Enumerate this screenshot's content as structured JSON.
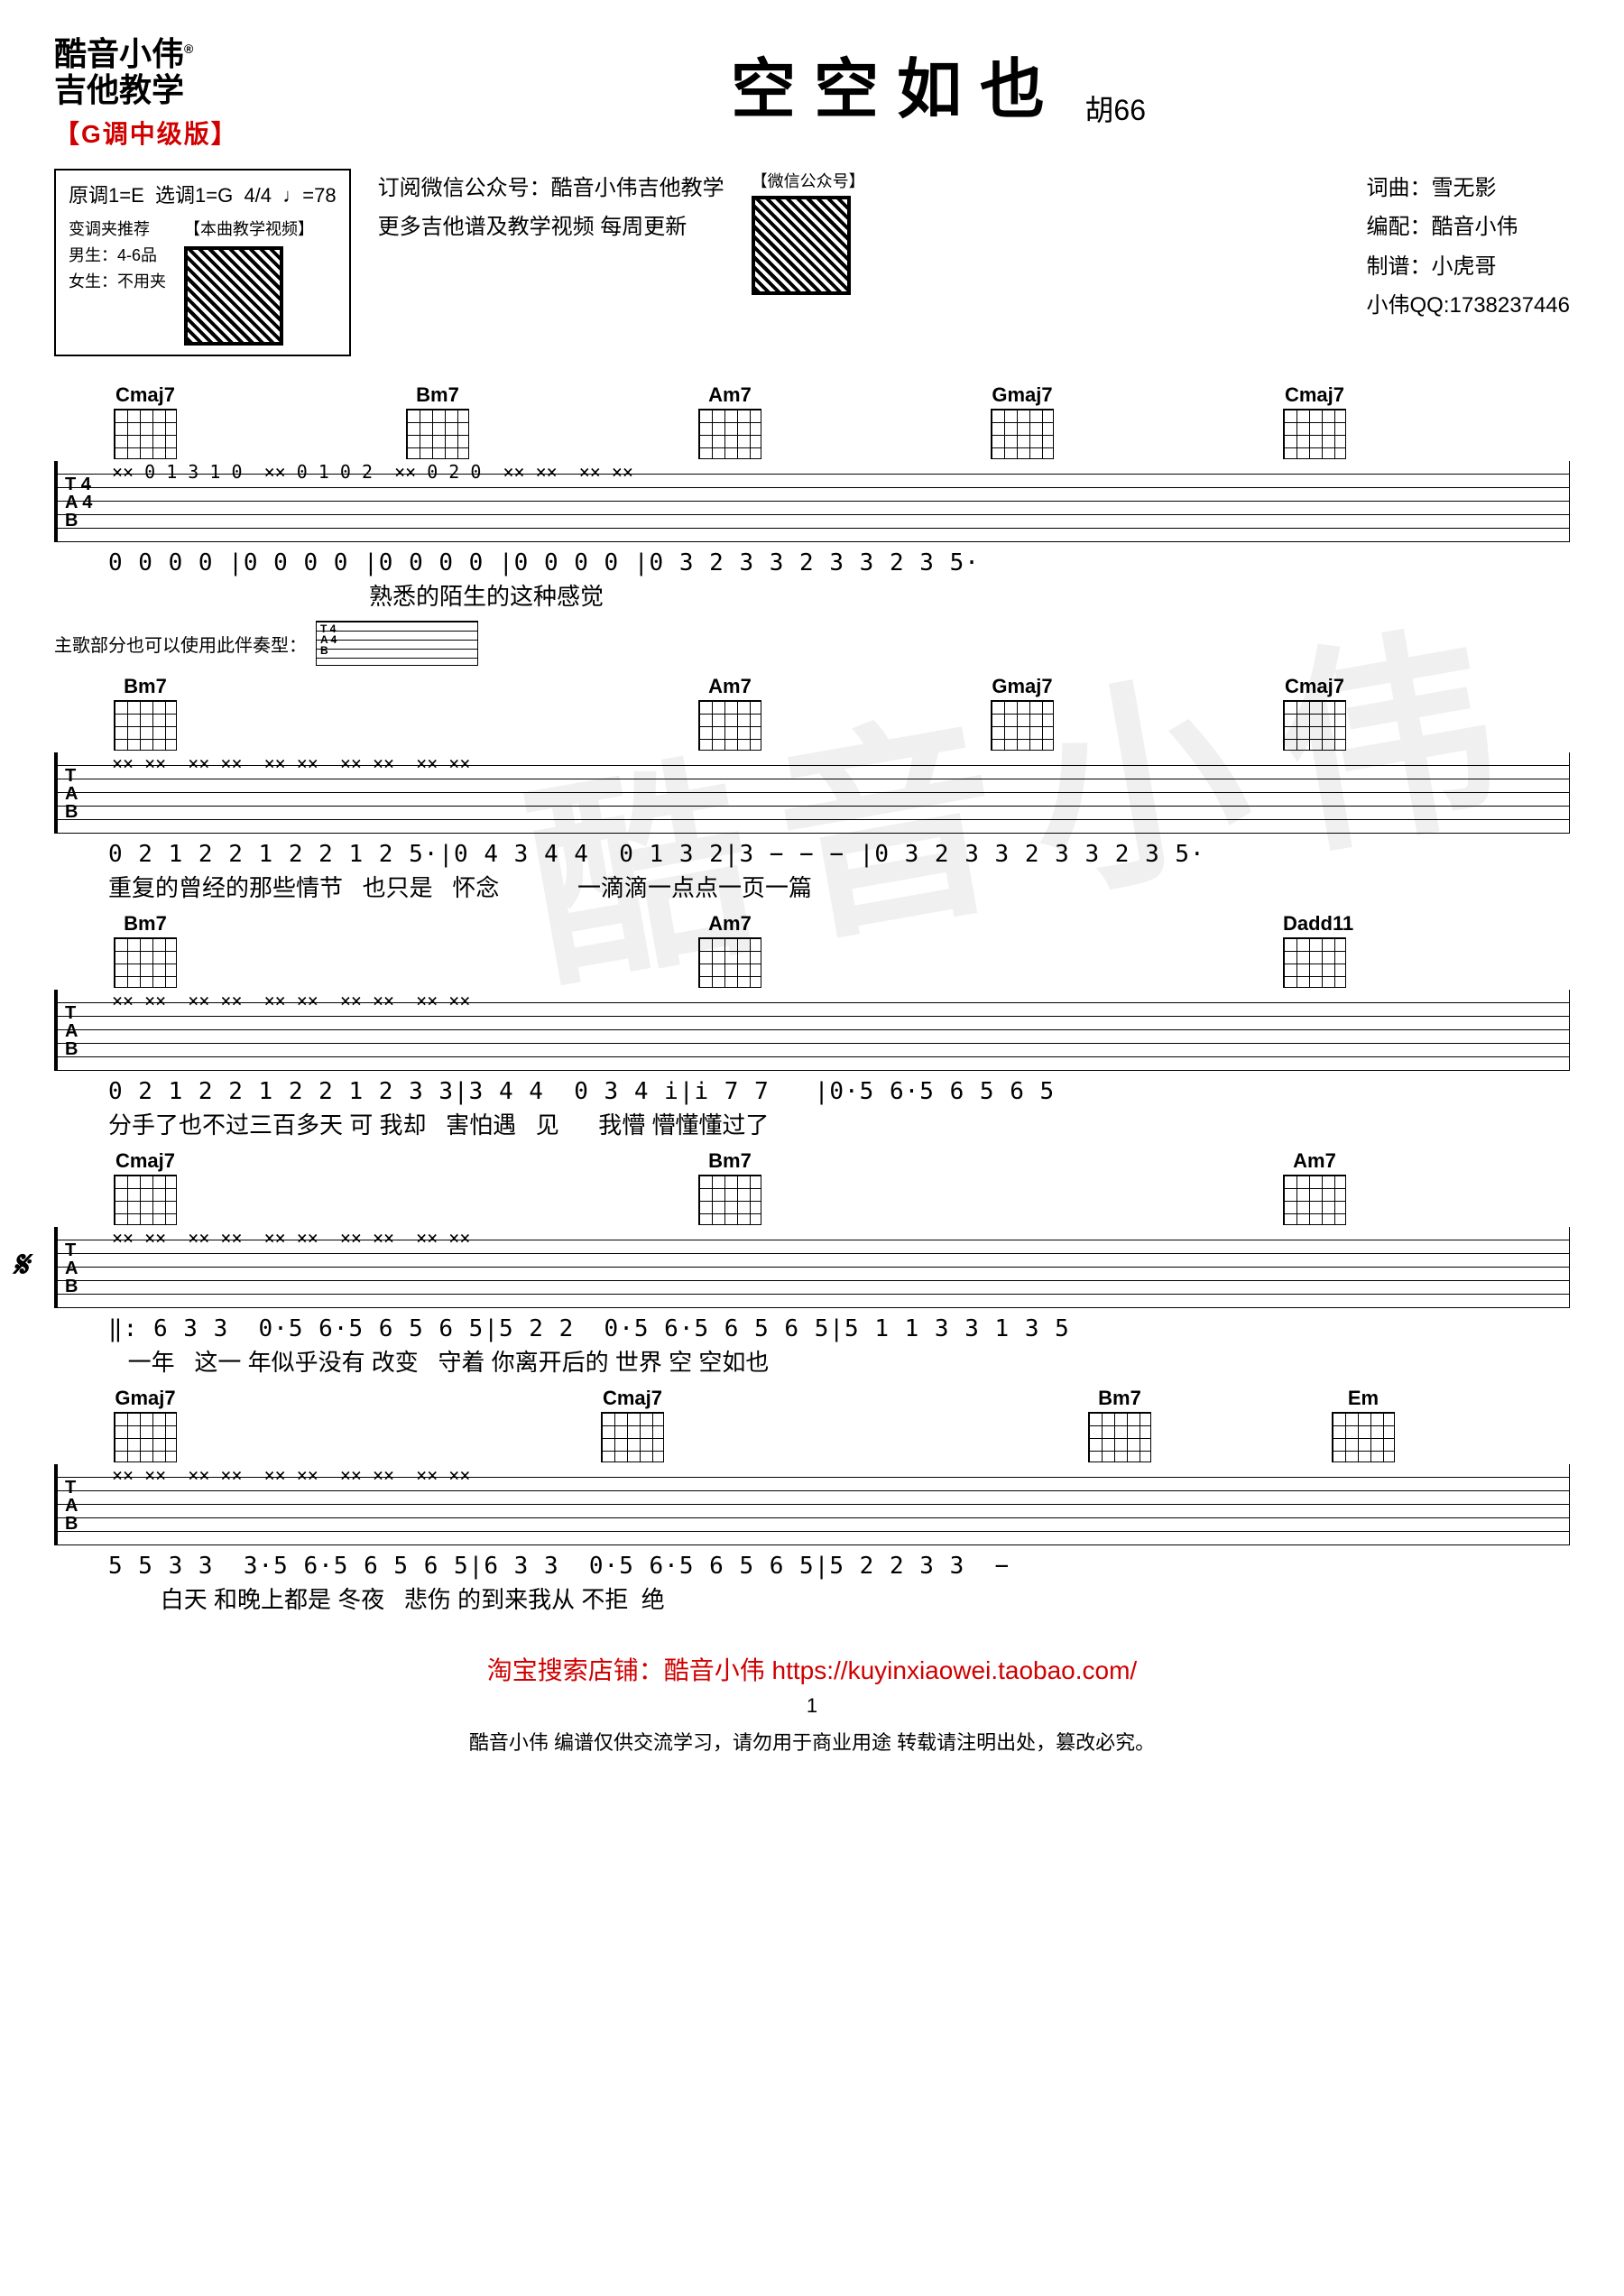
{
  "header": {
    "brand_line1": "酷音小伟",
    "brand_line2": "吉他教学",
    "reg_mark": "®",
    "version": "【G调中级版】",
    "song_title": "空空如也",
    "artist": "胡66"
  },
  "info_box": {
    "original_key": "原调1=E",
    "play_key": "选调1=G",
    "time_sig": "4/4",
    "tempo": "♩=78",
    "capo_title": "变调夹推荐",
    "capo_male": "男生：4-6品",
    "capo_female": "女生：不用夹",
    "video_label": "【本曲教学视频】"
  },
  "subscribe": {
    "line1": "订阅微信公众号：酷音小伟吉他教学",
    "line2": "更多吉他谱及教学视频 每周更新",
    "qr_label": "【微信公众号】"
  },
  "credits": {
    "lyrics_music": "词曲：雪无影",
    "arrange": "编配：酷音小伟",
    "tab_by": "制谱：小虎哥",
    "qq": "小伟QQ:1738237446"
  },
  "alt_pattern_label": "主歌部分也可以使用此伴奏型：",
  "systems": [
    {
      "chords": [
        "Cmaj7",
        "Bm7",
        "Am7",
        "Gmaj7",
        "Cmaj7"
      ],
      "tab_hint": "×× 0 1 3 1 0  ×× 0 1 0 2  ×× 0 2 0  ×× ××  ×× ××",
      "numbers": "0 0 0 0 |0 0 0 0 |0 0 0 0 |0 0 0 0 |0 3 2 3 3 2 3 3 2 3 5·",
      "lyrics": "                                        熟悉的陌生的这种感觉"
    },
    {
      "chords": [
        "Bm7",
        "",
        "Am7",
        "Gmaj7",
        "Cmaj7"
      ],
      "tab_hint": "×× ××  ×× ××  ×× ××  ×× ××  ×× ××",
      "numbers": "0 2 1 2 2 1 2 2 1 2 5·|0 4 3 4 4  0 1 3 2|3 − − − |0 3 2 3 3 2 3 3 2 3 5·",
      "lyrics": "重复的曾经的那些情节   也只是   怀念            一滴滴一点点一页一篇"
    },
    {
      "chords": [
        "Bm7",
        "",
        "Am7",
        "",
        "Dadd11"
      ],
      "tab_hint": "×× ××  ×× ××  ×× ××  ×× ××  ×× ××",
      "numbers": "0 2 1 2 2 1 2 2 1 2 3 3|3 4 4  0 3 4 i|i 7 7   |0·5 6·5 6 5 6 5",
      "lyrics": "分手了也不过三百多天 可 我却   害怕遇   见      我懵 懵懂懂过了"
    },
    {
      "chords": [
        "Cmaj7",
        "",
        "Bm7",
        "",
        "Am7"
      ],
      "tab_hint": "×× ××  ×× ××  ×× ××  ×× ××  ×× ××",
      "numbers": "‖: 6 3 3  0·5 6·5 6 5 6 5|5 2 2  0·5 6·5 6 5 6 5|5 1 1 3 3 1 3 5",
      "lyrics": "   一年   这一 年似乎没有 改变   守着 你离开后的 世界 空 空如也",
      "has_segno": true
    },
    {
      "chords": [
        "Gmaj7",
        "",
        "Cmaj7",
        "",
        "Bm7",
        "Em"
      ],
      "tab_hint": "×× ××  ×× ××  ×× ××  ×× ××  ×× ××",
      "numbers": "5 5 3 3  3·5 6·5 6 5 6 5|6 3 3  0·5 6·5 6 5 6 5|5 2 2 3 3  −",
      "lyrics": "        白天 和晚上都是 冬夜   悲伤 的到来我从 不拒  绝"
    }
  ],
  "footer": {
    "shop_link": "淘宝搜索店铺：酷音小伟 https://kuyinxiaowei.taobao.com/",
    "page": "1",
    "disclaimer": "酷音小伟 编谱仅供交流学习，请勿用于商业用途 转载请注明出处，篡改必究。"
  },
  "colors": {
    "red": "#d00000",
    "text": "#000000",
    "bg": "#ffffff"
  }
}
